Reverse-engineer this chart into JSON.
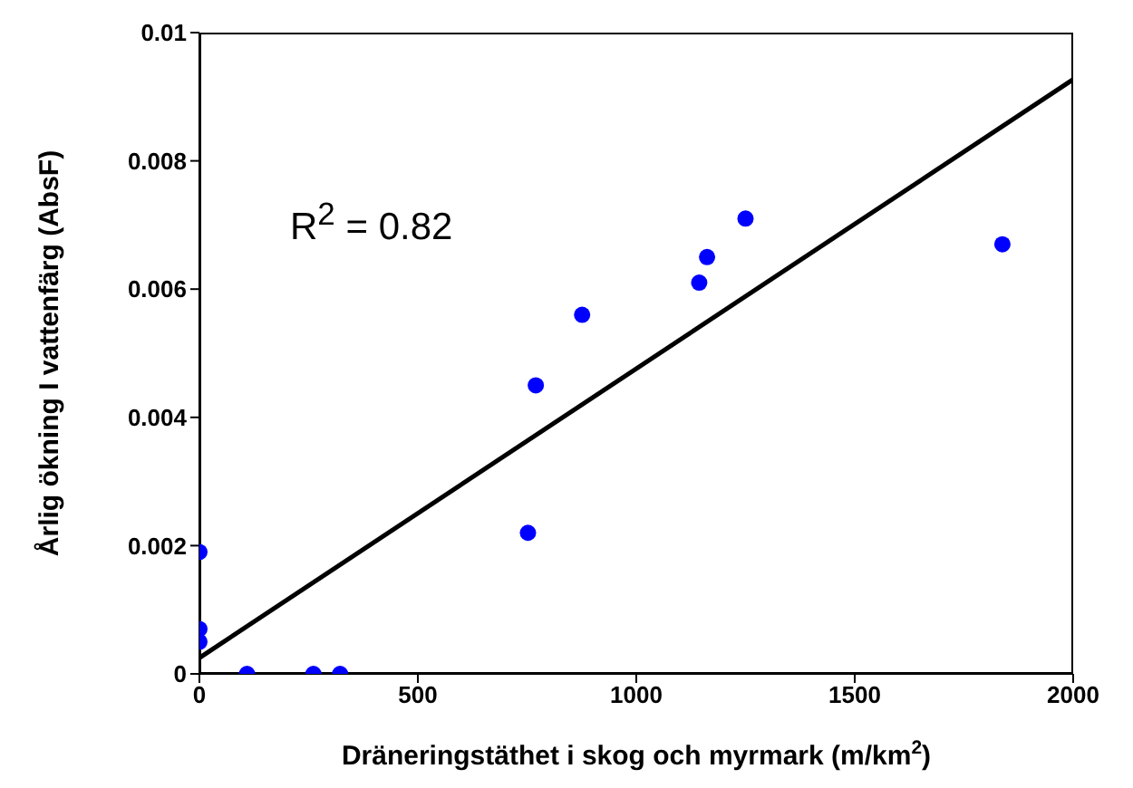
{
  "chart_data": {
    "type": "scatter",
    "xlabel": "Dräneringstäthet i skog och myrmark (m/km$^{2}$)",
    "ylabel": "Årlig ökning I vattenfärg (AbsF)",
    "xlim": [
      0,
      2000
    ],
    "xticks": [
      0,
      500,
      1000,
      1500,
      2000
    ],
    "ylim": [
      0,
      0.01
    ],
    "yticks": [
      0,
      0.002,
      0.004,
      0.006,
      0.008,
      0.01
    ],
    "annotations": [
      "R$^{2}$ = 0.82"
    ],
    "series": [
      {
        "color": "#0000ff",
        "marker": "circle",
        "x": [
          0,
          0,
          0,
          109,
          261,
          322,
          752,
          770,
          876,
          1144,
          1162,
          1250,
          1838
        ],
        "values": [
          0.0019,
          0.0007,
          0.0005,
          0,
          0,
          0,
          0.0022,
          0.0045,
          0.0056,
          0.0061,
          0.0065,
          0.0071,
          0.0067
        ]
      },
      {
        "type": "line",
        "color": "#000000",
        "line_style": "solid",
        "x": [
          0,
          2000
        ],
        "values": [
          0.00025,
          0.00927
        ]
      }
    ]
  }
}
